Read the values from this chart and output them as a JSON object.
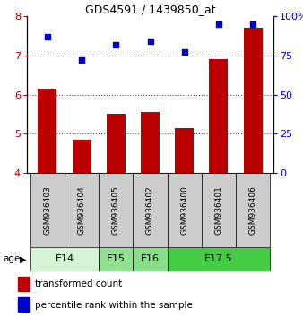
{
  "title": "GDS4591 / 1439850_at",
  "samples": [
    "GSM936403",
    "GSM936404",
    "GSM936405",
    "GSM936402",
    "GSM936400",
    "GSM936401",
    "GSM936406"
  ],
  "bar_values": [
    6.15,
    4.85,
    5.5,
    5.55,
    5.15,
    6.9,
    7.7
  ],
  "scatter_values_right": [
    87,
    72,
    82,
    84,
    77,
    95,
    95
  ],
  "bar_color": "#bb0000",
  "scatter_color": "#0000cc",
  "ylim_left": [
    4,
    8
  ],
  "yticks_left": [
    4,
    5,
    6,
    7,
    8
  ],
  "ylim_right": [
    0,
    100
  ],
  "yticks_right": [
    0,
    25,
    50,
    75,
    100
  ],
  "yticklabels_right": [
    "0",
    "25",
    "50",
    "75",
    "100%"
  ],
  "age_groups": [
    {
      "label": "E14",
      "start": 0,
      "end": 2,
      "color": "#d4f5d4"
    },
    {
      "label": "E15",
      "start": 2,
      "end": 3,
      "color": "#90e090"
    },
    {
      "label": "E16",
      "start": 3,
      "end": 4,
      "color": "#88dd88"
    },
    {
      "label": "E17.5",
      "start": 4,
      "end": 7,
      "color": "#44cc44"
    }
  ],
  "legend_bar_label": "transformed count",
  "legend_scatter_label": "percentile rank within the sample",
  "age_label": "age",
  "sample_box_color": "#cccccc",
  "dotted_line_color": "#555555",
  "fig_width": 3.38,
  "fig_height": 3.54,
  "dpi": 100
}
